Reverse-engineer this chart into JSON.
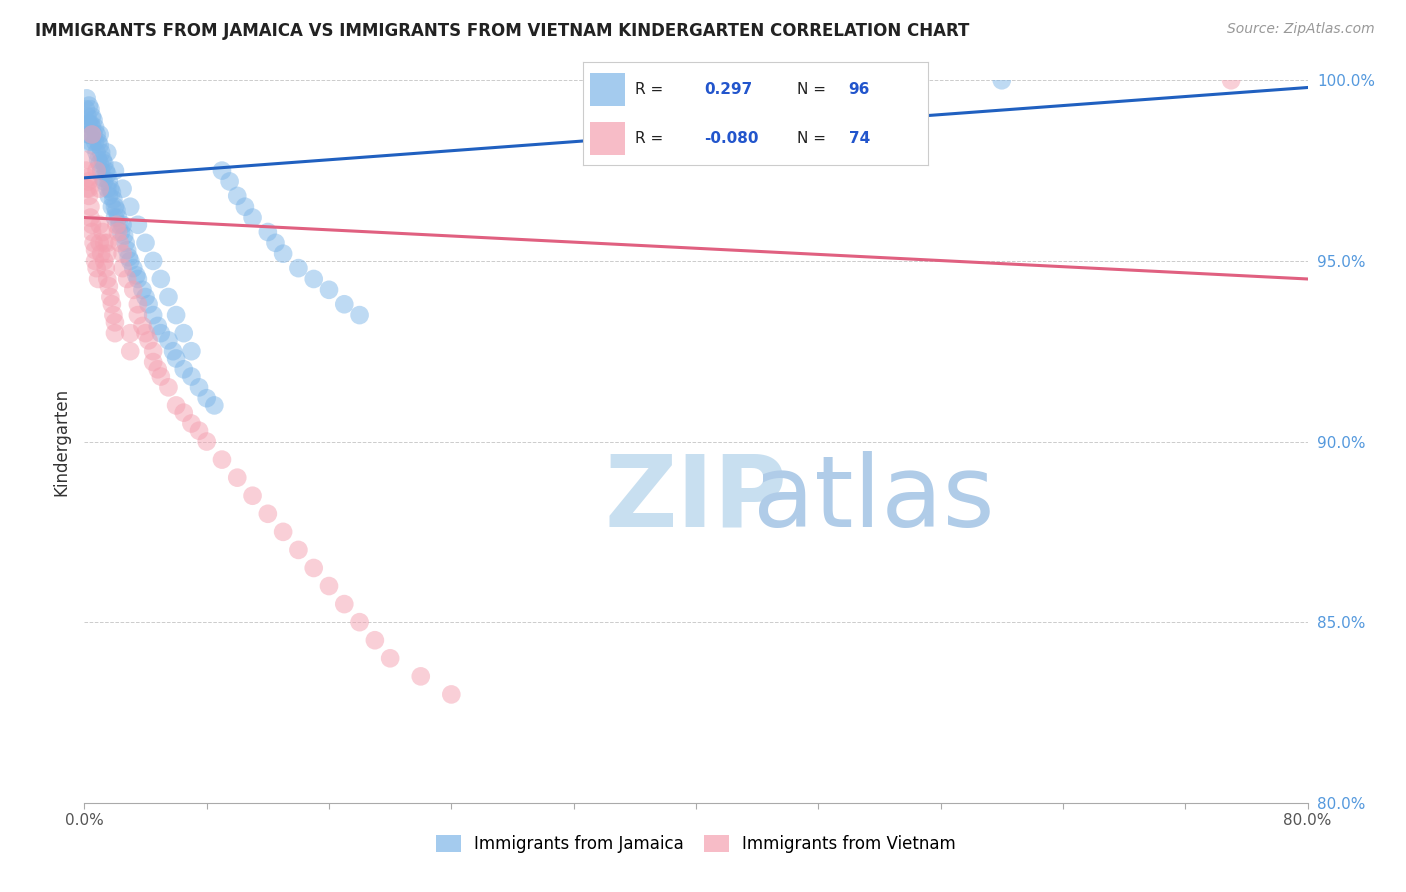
{
  "title": "IMMIGRANTS FROM JAMAICA VS IMMIGRANTS FROM VIETNAM KINDERGARTEN CORRELATION CHART",
  "source": "Source: ZipAtlas.com",
  "ylabel": "Kindergarten",
  "xlim": [
    0.0,
    80.0
  ],
  "ylim": [
    80.0,
    100.0
  ],
  "x_tick_positions": [
    0.0,
    8.0,
    16.0,
    24.0,
    32.0,
    40.0,
    48.0,
    56.0,
    64.0,
    72.0,
    80.0
  ],
  "x_tick_labels": [
    "0.0%",
    "",
    "",
    "",
    "",
    "",
    "",
    "",
    "",
    "",
    "80.0%"
  ],
  "yticks": [
    80.0,
    85.0,
    90.0,
    95.0,
    100.0
  ],
  "jamaica_color": "#7EB6E8",
  "vietnam_color": "#F4A0B0",
  "jamaica_line_color": "#2060C0",
  "vietnam_line_color": "#E06080",
  "watermark_zip_color": "#C8DFF0",
  "watermark_atlas_color": "#B0CCE8",
  "background_color": "#FFFFFF",
  "legend_entries": [
    "Immigrants from Jamaica",
    "Immigrants from Vietnam"
  ],
  "jamaica_trend_x": [
    0.0,
    80.0
  ],
  "jamaica_trend_y": [
    97.3,
    99.8
  ],
  "vietnam_trend_x": [
    0.0,
    80.0
  ],
  "vietnam_trend_y": [
    96.2,
    94.5
  ],
  "jamaica_x": [
    0.1,
    0.15,
    0.2,
    0.2,
    0.25,
    0.3,
    0.3,
    0.3,
    0.4,
    0.4,
    0.4,
    0.5,
    0.5,
    0.5,
    0.6,
    0.6,
    0.7,
    0.7,
    0.8,
    0.8,
    0.9,
    0.9,
    1.0,
    1.0,
    1.1,
    1.1,
    1.2,
    1.2,
    1.3,
    1.3,
    1.4,
    1.5,
    1.5,
    1.6,
    1.6,
    1.7,
    1.8,
    1.8,
    1.9,
    2.0,
    2.0,
    2.1,
    2.2,
    2.3,
    2.4,
    2.5,
    2.6,
    2.7,
    2.8,
    2.9,
    3.0,
    3.2,
    3.4,
    3.5,
    3.8,
    4.0,
    4.2,
    4.5,
    4.8,
    5.0,
    5.5,
    5.8,
    6.0,
    6.5,
    7.0,
    7.5,
    8.0,
    8.5,
    9.0,
    9.5,
    10.0,
    10.5,
    11.0,
    12.0,
    12.5,
    13.0,
    14.0,
    15.0,
    16.0,
    17.0,
    18.0,
    60.0,
    1.0,
    1.5,
    2.0,
    2.5,
    3.0,
    3.5,
    4.0,
    4.5,
    5.0,
    5.5,
    6.0,
    6.5,
    7.0
  ],
  "jamaica_y": [
    99.2,
    99.5,
    99.0,
    98.8,
    98.5,
    99.3,
    98.8,
    98.5,
    99.2,
    98.8,
    98.3,
    99.0,
    98.7,
    98.2,
    98.9,
    98.5,
    98.7,
    98.3,
    98.5,
    98.0,
    98.3,
    97.8,
    98.2,
    97.7,
    98.0,
    97.5,
    97.8,
    97.3,
    97.7,
    97.2,
    97.5,
    97.4,
    97.0,
    97.2,
    96.8,
    97.0,
    96.9,
    96.5,
    96.7,
    96.5,
    96.2,
    96.4,
    96.2,
    96.0,
    95.8,
    96.0,
    95.7,
    95.5,
    95.3,
    95.1,
    95.0,
    94.8,
    94.6,
    94.5,
    94.2,
    94.0,
    93.8,
    93.5,
    93.2,
    93.0,
    92.8,
    92.5,
    92.3,
    92.0,
    91.8,
    91.5,
    91.2,
    91.0,
    97.5,
    97.2,
    96.8,
    96.5,
    96.2,
    95.8,
    95.5,
    95.2,
    94.8,
    94.5,
    94.2,
    93.8,
    93.5,
    100.0,
    98.5,
    98.0,
    97.5,
    97.0,
    96.5,
    96.0,
    95.5,
    95.0,
    94.5,
    94.0,
    93.5,
    93.0,
    92.5
  ],
  "vietnam_x": [
    0.1,
    0.15,
    0.2,
    0.2,
    0.25,
    0.3,
    0.3,
    0.4,
    0.4,
    0.5,
    0.5,
    0.6,
    0.7,
    0.7,
    0.8,
    0.8,
    0.9,
    1.0,
    1.0,
    1.1,
    1.2,
    1.3,
    1.3,
    1.4,
    1.5,
    1.5,
    1.6,
    1.7,
    1.8,
    1.9,
    2.0,
    2.0,
    2.1,
    2.2,
    2.3,
    2.5,
    2.5,
    2.8,
    3.0,
    3.0,
    3.2,
    3.5,
    3.5,
    3.8,
    4.0,
    4.2,
    4.5,
    4.5,
    4.8,
    5.0,
    5.5,
    6.0,
    6.5,
    7.0,
    7.5,
    8.0,
    9.0,
    10.0,
    11.0,
    12.0,
    13.0,
    14.0,
    15.0,
    16.0,
    17.0,
    18.0,
    19.0,
    20.0,
    22.0,
    24.0,
    75.0,
    0.5,
    1.0,
    1.5
  ],
  "vietnam_y": [
    97.5,
    97.0,
    97.8,
    97.3,
    97.2,
    97.0,
    96.8,
    96.5,
    96.2,
    96.0,
    95.8,
    95.5,
    95.3,
    95.0,
    97.5,
    94.8,
    94.5,
    96.0,
    95.5,
    95.2,
    95.8,
    95.5,
    95.0,
    94.8,
    95.2,
    94.5,
    94.3,
    94.0,
    93.8,
    93.5,
    93.3,
    93.0,
    96.0,
    95.8,
    95.5,
    95.2,
    94.8,
    94.5,
    93.0,
    92.5,
    94.2,
    93.8,
    93.5,
    93.2,
    93.0,
    92.8,
    92.5,
    92.2,
    92.0,
    91.8,
    91.5,
    91.0,
    90.8,
    90.5,
    90.3,
    90.0,
    89.5,
    89.0,
    88.5,
    88.0,
    87.5,
    87.0,
    86.5,
    86.0,
    85.5,
    85.0,
    84.5,
    84.0,
    83.5,
    83.0,
    100.0,
    98.5,
    97.0,
    95.5
  ],
  "dot_size": 180
}
